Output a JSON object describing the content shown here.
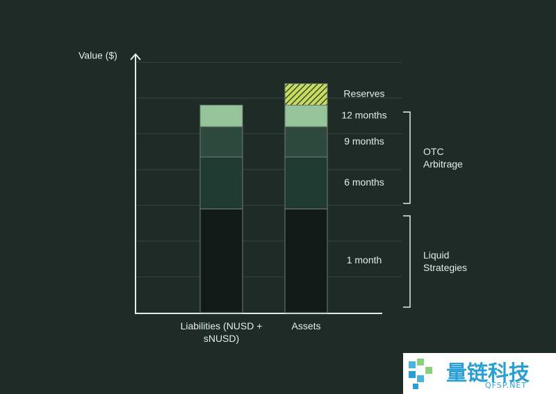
{
  "chart_data": {
    "type": "stacked-bar",
    "y_label": "Value ($)",
    "categories": [
      "Liabilities (NUSD + sNUSD)",
      "Assets"
    ],
    "ylim": [
      0,
      7
    ],
    "series": [
      {
        "name": "1 month",
        "color": "#111a17",
        "values": [
          2.9,
          2.9
        ]
      },
      {
        "name": "6 months",
        "color": "#1f3a30",
        "values": [
          1.45,
          1.45
        ]
      },
      {
        "name": "9 months",
        "color": "#2e4a3f",
        "values": [
          0.85,
          0.85
        ]
      },
      {
        "name": "12 months",
        "color": "#95c49a",
        "values": [
          0.6,
          0.6
        ]
      },
      {
        "name": "Reserves",
        "color": "#c7dc5a",
        "hatched": true,
        "values": [
          null,
          0.6
        ]
      }
    ],
    "groups": [
      {
        "label": "OTC Arbitrage",
        "series": [
          1,
          2,
          3
        ]
      },
      {
        "label": "Liquid Strategies",
        "series": [
          0
        ]
      }
    ]
  },
  "watermark": {
    "name": "量链科技",
    "url": "QFSP.NET"
  }
}
